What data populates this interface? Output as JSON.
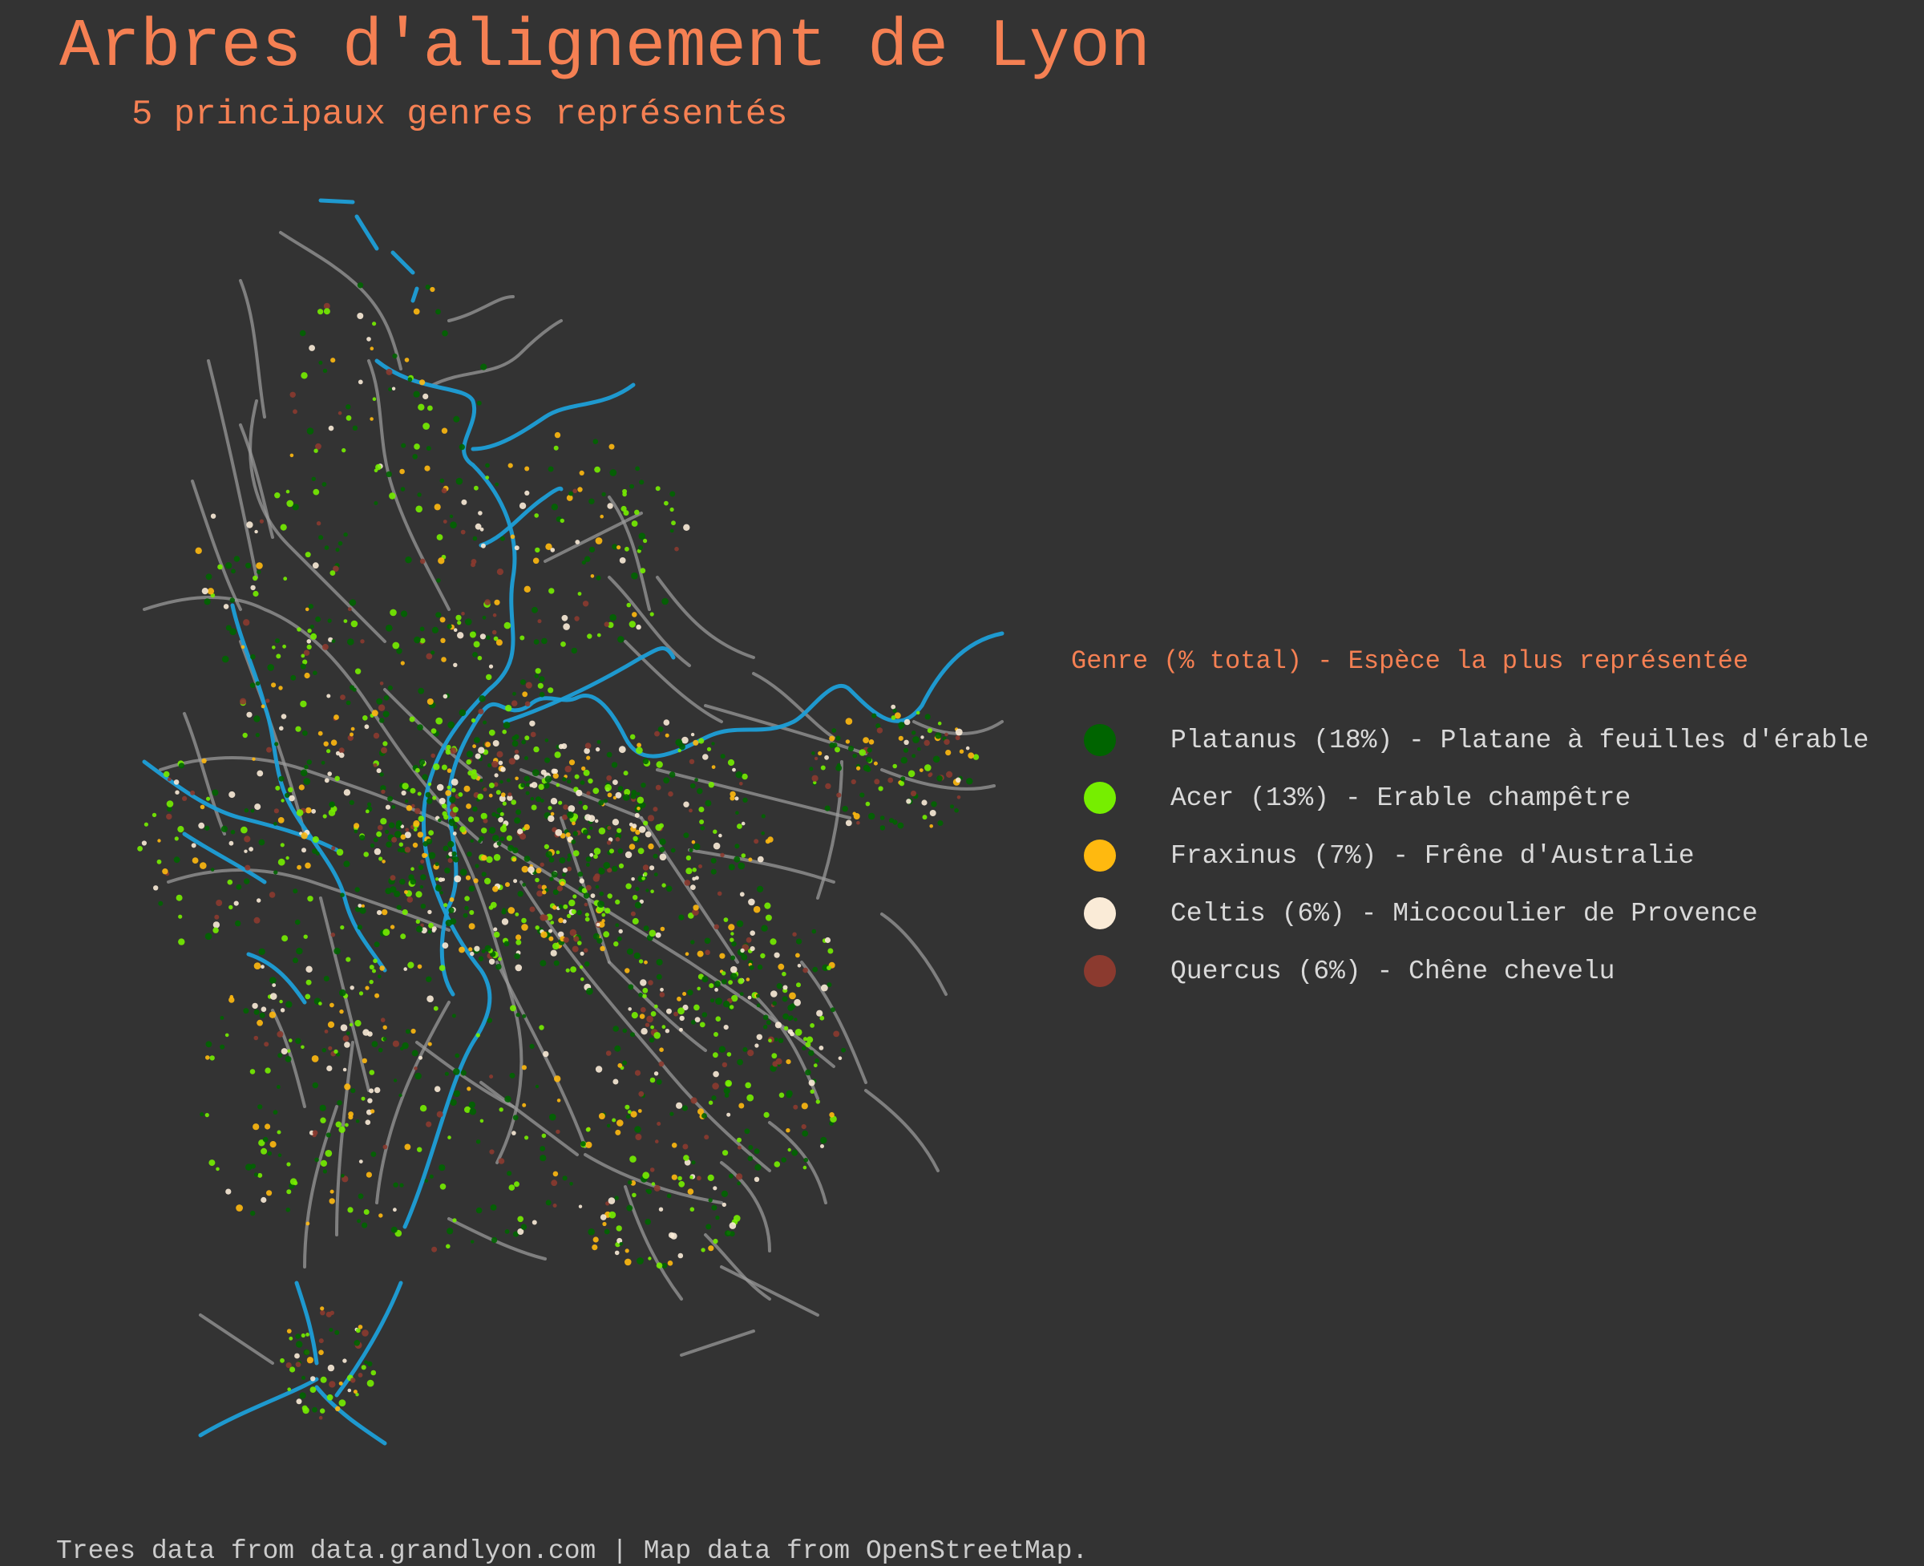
{
  "title": "Arbres d'alignement de Lyon",
  "subtitle": "5 principaux genres représentés",
  "legend": {
    "title": "Genre (% total) - Espèce la plus représentée",
    "items": [
      {
        "label": "Platanus (18%) - Platane à feuilles d'érable",
        "color": "#006400"
      },
      {
        "label": "Acer (13%) - Erable champêtre",
        "color": "#76EE00"
      },
      {
        "label": "Fraxinus (7%) - Frêne d'Australie",
        "color": "#FFB90F"
      },
      {
        "label": "Celtis (6%) - Micocoulier de Provence",
        "color": "#FAEBD7"
      },
      {
        "label": "Quercus (6%) - Chêne chevelu",
        "color": "#8B3A2F"
      }
    ]
  },
  "caption": "Trees data from data.grandlyon.com | Map data from OpenStreetMap.",
  "map_style": {
    "river_color": "#1E9FD8",
    "road_color": "#9A9A9A"
  }
}
